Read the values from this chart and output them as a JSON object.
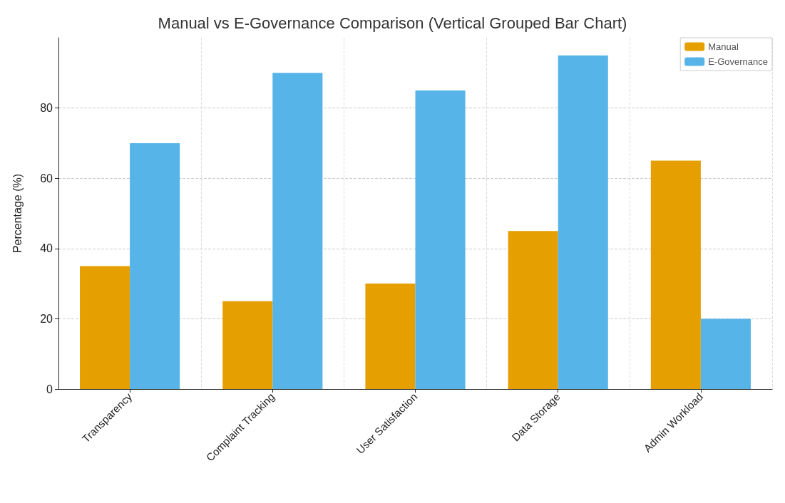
{
  "chart_data": {
    "type": "bar",
    "title": "Manual vs E-Governance Comparison (Vertical Grouped Bar Chart)",
    "ylabel": "Percentage (%)",
    "categories": [
      "Transparency",
      "Complaint Tracking",
      "User Satisfaction",
      "Data Storage",
      "Admin Workload"
    ],
    "series": [
      {
        "name": "Manual",
        "color": "#e69f00",
        "values": [
          35,
          25,
          30,
          45,
          65
        ]
      },
      {
        "name": "E-Governance",
        "color": "#56b4e9",
        "values": [
          70,
          90,
          85,
          95,
          20
        ]
      }
    ],
    "ylim": [
      0,
      100
    ],
    "yticks": [
      0,
      20,
      40,
      60,
      80
    ],
    "grid": true,
    "legend": "top right"
  }
}
